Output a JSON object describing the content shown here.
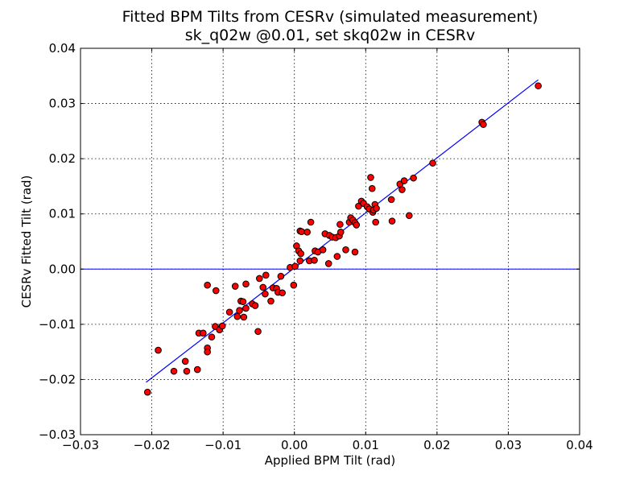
{
  "chart_data": {
    "type": "scatter",
    "title": "Fitted BPM Tilts from CESRv (simulated measurement)",
    "subtitle": "sk_q02w @0.01, set skq02w in CESRv",
    "xlabel": "Applied BPM Tilt (rad)",
    "ylabel": "CESRv Fitted Tilt (rad)",
    "xlim": [
      -0.03,
      0.04
    ],
    "ylim": [
      -0.03,
      0.04
    ],
    "xticks": [
      -0.03,
      -0.02,
      -0.01,
      0.0,
      0.01,
      0.02,
      0.03,
      0.04
    ],
    "yticks": [
      -0.03,
      -0.02,
      -0.01,
      0.0,
      0.01,
      0.02,
      0.03,
      0.04
    ],
    "xtick_labels": [
      "−0.03",
      "−0.02",
      "−0.01",
      "0.00",
      "0.01",
      "0.02",
      "0.03",
      "0.04"
    ],
    "ytick_labels": [
      "−0.03",
      "−0.02",
      "−0.01",
      "0.00",
      "0.01",
      "0.02",
      "0.03",
      "0.04"
    ],
    "grid": true,
    "zero_line": 0.0,
    "fit_line": {
      "x": [
        -0.0208,
        0.0342
      ],
      "y": [
        -0.0205,
        0.0343
      ],
      "color": "#0000ff"
    },
    "marker": {
      "fill": "#ff0000",
      "edge": "#000000"
    },
    "points": [
      [
        -0.0206,
        -0.0223
      ],
      [
        -0.0191,
        -0.0147
      ],
      [
        -0.0169,
        -0.0185
      ],
      [
        -0.0153,
        -0.0167
      ],
      [
        -0.0151,
        -0.0185
      ],
      [
        -0.0136,
        -0.0182
      ],
      [
        -0.0134,
        -0.0116
      ],
      [
        -0.0128,
        -0.0116
      ],
      [
        -0.0122,
        -0.0029
      ],
      [
        -0.0122,
        -0.0143
      ],
      [
        -0.0122,
        -0.015
      ],
      [
        -0.0116,
        -0.0123
      ],
      [
        -0.0111,
        -0.0104
      ],
      [
        -0.011,
        -0.0039
      ],
      [
        -0.0105,
        -0.011
      ],
      [
        -0.0101,
        -0.0103
      ],
      [
        -0.0091,
        -0.0078
      ],
      [
        -0.0083,
        -0.0031
      ],
      [
        -0.008,
        -0.0086
      ],
      [
        -0.0077,
        -0.0075
      ],
      [
        -0.0075,
        -0.0058
      ],
      [
        -0.0072,
        -0.0059
      ],
      [
        -0.0071,
        -0.0087
      ],
      [
        -0.0068,
        -0.0027
      ],
      [
        -0.0068,
        -0.0071
      ],
      [
        -0.0059,
        -0.0063
      ],
      [
        -0.0055,
        -0.0066
      ],
      [
        -0.0051,
        -0.0113
      ],
      [
        -0.0049,
        -0.0017
      ],
      [
        -0.0044,
        -0.0033
      ],
      [
        -0.0041,
        -0.0045
      ],
      [
        -0.004,
        -0.0011
      ],
      [
        -0.0033,
        -0.0058
      ],
      [
        -0.003,
        -0.0034
      ],
      [
        -0.0025,
        -0.0035
      ],
      [
        -0.0023,
        -0.0042
      ],
      [
        -0.0019,
        -0.0013
      ],
      [
        -0.0017,
        -0.0043
      ],
      [
        -0.0006,
        0.0003
      ],
      [
        -0.0001,
        -0.0029
      ],
      [
        0.0001,
        0.0005
      ],
      [
        0.0003,
        0.0042
      ],
      [
        0.0006,
        0.0033
      ],
      [
        0.0008,
        0.0015
      ],
      [
        0.0008,
        0.0069
      ],
      [
        0.0009,
        0.0028
      ],
      [
        0.001,
        0.0068
      ],
      [
        0.0018,
        0.0067
      ],
      [
        0.0021,
        0.0015
      ],
      [
        0.0023,
        0.0085
      ],
      [
        0.0028,
        0.0016
      ],
      [
        0.0029,
        0.0033
      ],
      [
        0.0033,
        0.0031
      ],
      [
        0.004,
        0.0035
      ],
      [
        0.0043,
        0.0064
      ],
      [
        0.0048,
        0.001
      ],
      [
        0.0049,
        0.0061
      ],
      [
        0.0053,
        0.0058
      ],
      [
        0.0058,
        0.0057
      ],
      [
        0.006,
        0.0023
      ],
      [
        0.0063,
        0.006
      ],
      [
        0.0064,
        0.0081
      ],
      [
        0.0065,
        0.0067
      ],
      [
        0.0072,
        0.0035
      ],
      [
        0.0077,
        0.0085
      ],
      [
        0.0079,
        0.0093
      ],
      [
        0.0082,
        0.0089
      ],
      [
        0.0085,
        0.0084
      ],
      [
        0.0085,
        0.0031
      ],
      [
        0.0087,
        0.008
      ],
      [
        0.009,
        0.0114
      ],
      [
        0.0094,
        0.0123
      ],
      [
        0.0097,
        0.0119
      ],
      [
        0.0102,
        0.0113
      ],
      [
        0.0105,
        0.0109
      ],
      [
        0.0107,
        0.0166
      ],
      [
        0.0109,
        0.0146
      ],
      [
        0.011,
        0.0103
      ],
      [
        0.0111,
        0.0107
      ],
      [
        0.0113,
        0.0117
      ],
      [
        0.0114,
        0.0085
      ],
      [
        0.0115,
        0.011
      ],
      [
        0.0136,
        0.0126
      ],
      [
        0.0137,
        0.0087
      ],
      [
        0.0148,
        0.0154
      ],
      [
        0.0151,
        0.0144
      ],
      [
        0.0154,
        0.016
      ],
      [
        0.0161,
        0.0097
      ],
      [
        0.0167,
        0.0165
      ],
      [
        0.0194,
        0.0192
      ],
      [
        0.0263,
        0.0266
      ],
      [
        0.0265,
        0.0262
      ],
      [
        0.0342,
        0.0332
      ]
    ]
  }
}
